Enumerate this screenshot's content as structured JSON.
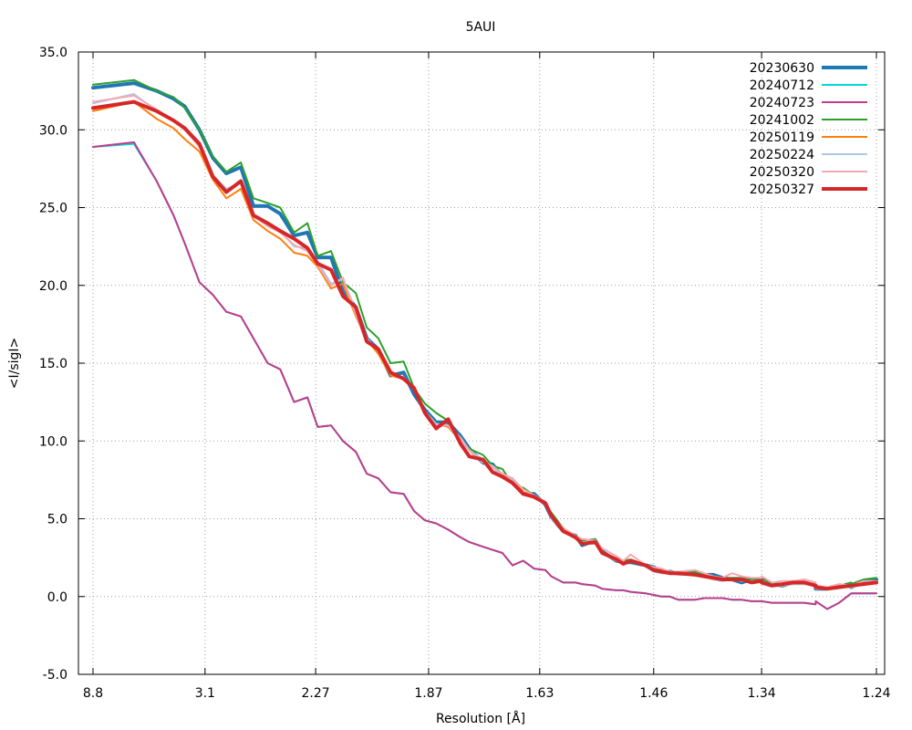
{
  "chart_data": {
    "type": "line",
    "title": "5AUI",
    "xlabel": "Resolution [Å]",
    "ylabel": "<I/sigI>",
    "ylim": [
      -5.0,
      35.0
    ],
    "yticks": [
      "35.0",
      "30.0",
      "25.0",
      "20.0",
      "15.0",
      "10.0",
      "5.0",
      "0.0",
      "-5.0"
    ],
    "yticks_values": [
      35,
      30,
      25,
      20,
      15,
      10,
      5,
      0,
      -5
    ],
    "xticks": [
      "8.8",
      "3.1",
      "2.27",
      "1.87",
      "1.63",
      "1.46",
      "1.34",
      "1.24"
    ],
    "xticks_values": [
      8.8,
      3.1,
      2.27,
      1.87,
      1.63,
      1.46,
      1.34,
      1.24
    ],
    "x_scale": "inverse-square resolution (1/d²)",
    "grid": true,
    "legend_position": "top-right",
    "series": [
      {
        "name": "20230630",
        "color": "#1f77b4",
        "width": 4,
        "x": [
          8.8,
          4.65,
          3.93,
          3.57,
          3.38,
          3.17,
          3.01,
          2.87,
          2.74,
          2.64,
          2.54,
          2.46,
          2.38,
          2.31,
          2.26,
          2.2,
          2.15,
          2.1,
          2.06,
          2.02,
          1.98,
          1.94,
          1.91,
          1.88,
          1.85,
          1.82,
          1.79,
          1.77,
          1.74,
          1.72,
          1.7,
          1.68,
          1.66,
          1.64,
          1.62,
          1.61,
          1.59,
          1.57,
          1.56,
          1.54,
          1.53,
          1.51,
          1.5,
          1.49,
          1.47,
          1.46,
          1.45,
          1.44,
          1.43,
          1.41,
          1.4,
          1.39,
          1.38,
          1.37,
          1.36,
          1.35,
          1.34,
          1.34,
          1.33,
          1.32,
          1.31,
          1.3,
          1.29,
          1.29,
          1.28,
          1.27,
          1.26,
          1.26,
          1.25,
          1.24
        ],
        "y": [
          32.7,
          33.0,
          32.5,
          32.0,
          31.5,
          30.0,
          28.2,
          27.2,
          27.6,
          25.1,
          25.1,
          24.6,
          23.2,
          23.4,
          21.8,
          21.8,
          19.6,
          18.6,
          16.6,
          15.9,
          14.2,
          14.4,
          13.0,
          12.0,
          11.2,
          11.2,
          10.3,
          9.5,
          8.6,
          8.5,
          7.7,
          7.5,
          6.6,
          6.6,
          5.9,
          5.1,
          4.2,
          3.9,
          3.3,
          3.6,
          2.9,
          2.3,
          2.2,
          2.2,
          2.0,
          1.9,
          1.6,
          1.6,
          1.5,
          1.5,
          1.4,
          1.4,
          1.2,
          1.1,
          0.9,
          1.1,
          1.1,
          1.1,
          0.8,
          0.7,
          0.9,
          0.9,
          0.7,
          0.5,
          0.5,
          0.6,
          0.8,
          0.6,
          1.0,
          1.1
        ]
      },
      {
        "name": "20240712",
        "color": "#00d8d8",
        "width": 2,
        "x": [
          8.8,
          4.65,
          3.93,
          3.57,
          3.38,
          3.17,
          3.01,
          2.87,
          2.74,
          2.64,
          2.54,
          2.46,
          2.38,
          2.31,
          2.26,
          2.2,
          2.15,
          2.1,
          2.06,
          2.02,
          1.98,
          1.94,
          1.91,
          1.88,
          1.85,
          1.82,
          1.79,
          1.77,
          1.74,
          1.72,
          1.7,
          1.68,
          1.66,
          1.64,
          1.62,
          1.61,
          1.59,
          1.57,
          1.56,
          1.54,
          1.53,
          1.51,
          1.5,
          1.49,
          1.47,
          1.46,
          1.45,
          1.44,
          1.43,
          1.41,
          1.4,
          1.39,
          1.38,
          1.37,
          1.36,
          1.35,
          1.34,
          1.34,
          1.33,
          1.32,
          1.31,
          1.3,
          1.29,
          1.29,
          1.28,
          1.27,
          1.26,
          1.26,
          1.25,
          1.24
        ],
        "y": [
          28.9,
          29.1,
          26.7,
          24.5,
          22.7,
          20.2,
          19.4,
          18.3,
          18.0,
          16.6,
          15.0,
          14.6,
          12.5,
          12.8,
          10.9,
          11.0,
          10.0,
          9.3,
          7.9,
          7.6,
          6.7,
          6.6,
          5.5,
          4.9,
          4.7,
          4.3,
          3.8,
          3.5,
          3.2,
          3.0,
          2.8,
          2.0,
          2.3,
          1.8,
          1.7,
          1.3,
          0.9,
          0.9,
          0.8,
          0.7,
          0.5,
          0.4,
          0.4,
          0.3,
          0.2,
          0.1,
          0.0,
          0.0,
          -0.2,
          -0.2,
          -0.1,
          -0.1,
          -0.1,
          -0.2,
          -0.2,
          -0.3,
          -0.3,
          -0.3,
          -0.4,
          -0.4,
          -0.4,
          -0.4,
          -0.5,
          -0.3,
          -0.8,
          -0.4,
          0.2,
          0.2,
          0.2,
          0.2
        ]
      },
      {
        "name": "20240723",
        "color": "#c23b8c",
        "width": 2,
        "x": [
          8.8,
          4.65,
          3.93,
          3.57,
          3.38,
          3.17,
          3.01,
          2.87,
          2.74,
          2.64,
          2.54,
          2.46,
          2.38,
          2.31,
          2.26,
          2.2,
          2.15,
          2.1,
          2.06,
          2.02,
          1.98,
          1.94,
          1.91,
          1.88,
          1.85,
          1.82,
          1.79,
          1.77,
          1.74,
          1.72,
          1.7,
          1.68,
          1.66,
          1.64,
          1.62,
          1.61,
          1.59,
          1.57,
          1.56,
          1.54,
          1.53,
          1.51,
          1.5,
          1.49,
          1.47,
          1.46,
          1.45,
          1.44,
          1.43,
          1.41,
          1.4,
          1.39,
          1.38,
          1.37,
          1.36,
          1.35,
          1.34,
          1.34,
          1.33,
          1.32,
          1.31,
          1.3,
          1.29,
          1.29,
          1.28,
          1.27,
          1.26,
          1.26,
          1.25,
          1.24
        ],
        "y": [
          28.9,
          29.2,
          26.7,
          24.5,
          22.7,
          20.2,
          19.4,
          18.3,
          18.0,
          16.6,
          15.0,
          14.6,
          12.5,
          12.8,
          10.9,
          11.0,
          10.0,
          9.3,
          7.9,
          7.6,
          6.7,
          6.6,
          5.5,
          4.9,
          4.7,
          4.3,
          3.8,
          3.5,
          3.2,
          3.0,
          2.8,
          2.0,
          2.3,
          1.8,
          1.7,
          1.3,
          0.9,
          0.9,
          0.8,
          0.7,
          0.5,
          0.4,
          0.4,
          0.3,
          0.2,
          0.1,
          0.0,
          0.0,
          -0.2,
          -0.2,
          -0.1,
          -0.1,
          -0.1,
          -0.2,
          -0.2,
          -0.3,
          -0.3,
          -0.3,
          -0.4,
          -0.4,
          -0.4,
          -0.4,
          -0.5,
          -0.3,
          -0.8,
          -0.4,
          0.2,
          0.2,
          0.2,
          0.2
        ]
      },
      {
        "name": "20241002",
        "color": "#2ca02c",
        "width": 2,
        "x": [
          8.8,
          4.65,
          3.93,
          3.57,
          3.38,
          3.17,
          3.01,
          2.87,
          2.74,
          2.64,
          2.54,
          2.46,
          2.38,
          2.31,
          2.26,
          2.2,
          2.15,
          2.1,
          2.06,
          2.02,
          1.98,
          1.94,
          1.91,
          1.88,
          1.85,
          1.82,
          1.79,
          1.77,
          1.74,
          1.72,
          1.7,
          1.68,
          1.66,
          1.64,
          1.62,
          1.61,
          1.59,
          1.57,
          1.56,
          1.54,
          1.53,
          1.51,
          1.5,
          1.49,
          1.47,
          1.46,
          1.45,
          1.44,
          1.43,
          1.41,
          1.4,
          1.39,
          1.38,
          1.37,
          1.36,
          1.35,
          1.34,
          1.34,
          1.33,
          1.32,
          1.31,
          1.3,
          1.29,
          1.29,
          1.28,
          1.27,
          1.26,
          1.26,
          1.25,
          1.24
        ],
        "y": [
          32.9,
          33.2,
          32.5,
          32.1,
          31.4,
          30.0,
          28.3,
          27.3,
          27.9,
          25.6,
          25.3,
          25.0,
          23.4,
          24.0,
          21.9,
          22.2,
          20.2,
          19.5,
          17.3,
          16.6,
          15.0,
          15.1,
          13.4,
          12.4,
          11.8,
          11.3,
          10.0,
          9.5,
          9.1,
          8.4,
          8.2,
          7.2,
          7.0,
          6.5,
          5.9,
          5.4,
          4.4,
          3.8,
          3.6,
          3.7,
          2.9,
          2.4,
          2.3,
          2.4,
          2.0,
          1.8,
          1.7,
          1.6,
          1.5,
          1.6,
          1.4,
          1.3,
          1.2,
          1.2,
          1.2,
          1.1,
          1.2,
          1.1,
          0.9,
          0.8,
          0.9,
          0.9,
          0.8,
          0.6,
          0.5,
          0.7,
          0.9,
          0.8,
          1.1,
          1.2
        ]
      },
      {
        "name": "20250119",
        "color": "#ff7f0e",
        "width": 2,
        "x": [
          8.8,
          4.65,
          3.93,
          3.57,
          3.38,
          3.17,
          3.01,
          2.87,
          2.74,
          2.64,
          2.54,
          2.46,
          2.38,
          2.31,
          2.26,
          2.2,
          2.15,
          2.1,
          2.06,
          2.02,
          1.98,
          1.94,
          1.91,
          1.88,
          1.85,
          1.82,
          1.79,
          1.77,
          1.74,
          1.72,
          1.7,
          1.68,
          1.66,
          1.64,
          1.62,
          1.61,
          1.59,
          1.57,
          1.56,
          1.54,
          1.53,
          1.51,
          1.5,
          1.49,
          1.47,
          1.46,
          1.45,
          1.44,
          1.43,
          1.41,
          1.4,
          1.39,
          1.38,
          1.37,
          1.36,
          1.35,
          1.34,
          1.34,
          1.33,
          1.32,
          1.31,
          1.3,
          1.29,
          1.29,
          1.28,
          1.27,
          1.26,
          1.26,
          1.25,
          1.24
        ],
        "y": [
          31.2,
          31.8,
          30.7,
          30.1,
          29.4,
          28.6,
          26.8,
          25.6,
          26.2,
          24.2,
          23.5,
          23.0,
          22.1,
          21.9,
          21.2,
          19.8,
          20.1,
          18.0,
          16.5,
          15.6,
          14.2,
          14.0,
          13.3,
          11.8,
          11.1,
          10.9,
          10.0,
          9.4,
          8.8,
          8.3,
          7.8,
          7.6,
          6.7,
          6.5,
          6.0,
          5.1,
          4.2,
          3.7,
          3.4,
          3.4,
          2.8,
          2.3,
          2.1,
          2.4,
          1.9,
          1.6,
          1.5,
          1.5,
          1.4,
          1.4,
          1.3,
          1.1,
          1.0,
          1.1,
          1.0,
          1.0,
          1.0,
          1.0,
          0.7,
          0.7,
          0.8,
          0.8,
          0.7,
          0.5,
          0.5,
          0.6,
          0.6,
          0.6,
          0.8,
          0.9
        ]
      },
      {
        "name": "20250224",
        "color": "#aec7e8",
        "width": 2,
        "x": [
          8.8,
          4.65,
          3.93,
          3.57,
          3.38,
          3.17,
          3.01,
          2.87,
          2.74,
          2.64,
          2.54,
          2.46,
          2.38,
          2.31,
          2.26,
          2.2,
          2.15,
          2.1,
          2.06,
          2.02,
          1.98,
          1.94,
          1.91,
          1.88,
          1.85,
          1.82,
          1.79,
          1.77,
          1.74,
          1.72,
          1.7,
          1.68,
          1.66,
          1.64,
          1.62,
          1.61,
          1.59,
          1.57,
          1.56,
          1.54,
          1.53,
          1.51,
          1.5,
          1.49,
          1.47,
          1.46,
          1.45,
          1.44,
          1.43,
          1.41,
          1.4,
          1.39,
          1.38,
          1.37,
          1.36,
          1.35,
          1.34,
          1.34,
          1.33,
          1.32,
          1.31,
          1.3,
          1.29,
          1.29,
          1.28,
          1.27,
          1.26,
          1.26,
          1.25,
          1.24
        ],
        "y": [
          31.7,
          32.3,
          31.2,
          30.6,
          30.0,
          29.0,
          27.1,
          26.2,
          26.6,
          24.4,
          24.0,
          23.5,
          22.5,
          22.4,
          21.5,
          20.1,
          20.4,
          18.4,
          16.6,
          15.8,
          14.3,
          14.1,
          13.4,
          11.9,
          11.1,
          11.0,
          10.0,
          9.4,
          8.8,
          8.3,
          7.7,
          7.5,
          6.6,
          6.4,
          5.9,
          5.0,
          4.2,
          3.7,
          3.4,
          3.4,
          2.8,
          2.3,
          2.1,
          2.4,
          1.9,
          1.6,
          1.5,
          1.5,
          1.4,
          1.4,
          1.3,
          1.1,
          1.0,
          1.1,
          1.0,
          1.0,
          1.0,
          1.0,
          0.7,
          0.7,
          0.8,
          0.8,
          0.7,
          0.5,
          0.5,
          0.6,
          0.6,
          0.6,
          0.8,
          0.9
        ]
      },
      {
        "name": "20250320",
        "color": "#f4a8b0",
        "width": 2,
        "x": [
          8.8,
          4.65,
          3.93,
          3.57,
          3.38,
          3.17,
          3.01,
          2.87,
          2.74,
          2.64,
          2.54,
          2.46,
          2.38,
          2.31,
          2.26,
          2.2,
          2.15,
          2.1,
          2.06,
          2.02,
          1.98,
          1.94,
          1.91,
          1.88,
          1.85,
          1.82,
          1.79,
          1.77,
          1.74,
          1.72,
          1.7,
          1.68,
          1.66,
          1.64,
          1.62,
          1.61,
          1.59,
          1.57,
          1.56,
          1.54,
          1.53,
          1.51,
          1.5,
          1.49,
          1.47,
          1.46,
          1.45,
          1.44,
          1.43,
          1.41,
          1.4,
          1.39,
          1.38,
          1.37,
          1.36,
          1.35,
          1.34,
          1.34,
          1.33,
          1.32,
          1.31,
          1.3,
          1.29,
          1.29,
          1.28,
          1.27,
          1.26,
          1.26,
          1.25,
          1.24
        ],
        "y": [
          31.8,
          32.2,
          31.3,
          30.6,
          30.0,
          28.9,
          27.0,
          26.0,
          26.7,
          24.5,
          23.8,
          23.4,
          22.6,
          22.2,
          21.3,
          20.0,
          20.5,
          18.1,
          16.3,
          15.9,
          14.4,
          14.0,
          13.5,
          11.8,
          11.0,
          11.0,
          10.2,
          9.4,
          8.6,
          8.4,
          7.9,
          7.6,
          6.9,
          6.5,
          6.1,
          5.2,
          4.4,
          3.9,
          3.7,
          3.6,
          3.1,
          2.6,
          2.3,
          2.7,
          2.0,
          1.9,
          1.8,
          1.6,
          1.6,
          1.7,
          1.5,
          1.3,
          1.2,
          1.5,
          1.3,
          1.2,
          1.2,
          1.3,
          0.9,
          1.0,
          1.0,
          1.1,
          0.9,
          0.7,
          0.6,
          0.8,
          0.7,
          0.7,
          1.0,
          1.0
        ]
      },
      {
        "name": "20250327",
        "color": "#d62728",
        "width": 4,
        "x": [
          8.8,
          4.65,
          3.93,
          3.57,
          3.38,
          3.17,
          3.01,
          2.87,
          2.74,
          2.64,
          2.54,
          2.46,
          2.38,
          2.31,
          2.26,
          2.2,
          2.15,
          2.1,
          2.06,
          2.02,
          1.98,
          1.94,
          1.91,
          1.88,
          1.85,
          1.82,
          1.79,
          1.77,
          1.74,
          1.72,
          1.7,
          1.68,
          1.66,
          1.64,
          1.62,
          1.61,
          1.59,
          1.57,
          1.56,
          1.54,
          1.53,
          1.51,
          1.5,
          1.49,
          1.47,
          1.46,
          1.45,
          1.44,
          1.43,
          1.41,
          1.4,
          1.39,
          1.38,
          1.37,
          1.36,
          1.35,
          1.34,
          1.34,
          1.33,
          1.32,
          1.31,
          1.3,
          1.29,
          1.29,
          1.28,
          1.27,
          1.26,
          1.26,
          1.25,
          1.24
        ],
        "y": [
          31.4,
          31.8,
          31.2,
          30.6,
          30.1,
          29.1,
          27.0,
          26.0,
          26.7,
          24.5,
          24.0,
          23.5,
          23.0,
          22.4,
          21.4,
          21.0,
          19.3,
          18.6,
          16.4,
          15.9,
          14.4,
          14.0,
          13.4,
          11.8,
          10.8,
          11.4,
          9.8,
          9.0,
          8.8,
          8.0,
          7.7,
          7.3,
          6.6,
          6.4,
          6.0,
          5.2,
          4.2,
          3.8,
          3.4,
          3.5,
          2.8,
          2.4,
          2.1,
          2.3,
          2.0,
          1.7,
          1.6,
          1.5,
          1.5,
          1.4,
          1.3,
          1.2,
          1.1,
          1.1,
          1.1,
          0.9,
          1.0,
          0.9,
          0.7,
          0.8,
          0.9,
          0.9,
          0.7,
          0.6,
          0.5,
          0.6,
          0.7,
          0.7,
          0.8,
          0.9
        ]
      }
    ]
  }
}
